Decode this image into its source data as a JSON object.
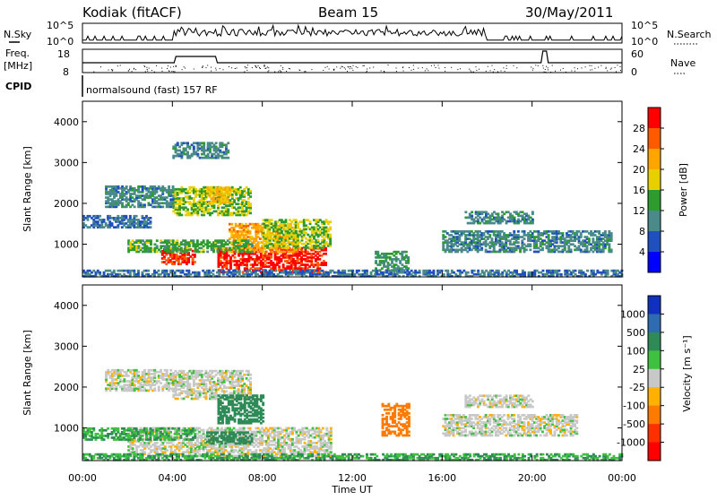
{
  "header": {
    "station": "Kodiak (fitACF)",
    "beam": "Beam 15",
    "date": "30/May/2011"
  },
  "top_panels": {
    "nsky_label": "N.Sky",
    "nsky_ticks": [
      "10^5",
      "10^0"
    ],
    "nsearch_label": "N.Search",
    "nsearch_ticks": [
      "10^5",
      "10^0"
    ],
    "freq_label_1": "Freq.",
    "freq_label_2": "[MHz]",
    "freq_ticks": [
      "18",
      "8"
    ],
    "nave_label": "Nave",
    "nave_ticks": [
      "60",
      "0"
    ],
    "cpid_label": "CPID",
    "cpid_text": "normalsound (fast) 157 RF"
  },
  "chart_data": [
    {
      "type": "heatmap",
      "name": "power-panel",
      "ylabel": "Slant Range [km]",
      "ylim": [
        200,
        4500
      ],
      "yticks": [
        "1000",
        "2000",
        "3000",
        "4000"
      ],
      "xlim": [
        "00:00",
        "24:00"
      ],
      "colorbar": {
        "label": "Power [dB]",
        "ticks": [
          "28",
          "24",
          "20",
          "16",
          "12",
          "8",
          "4"
        ],
        "colors": [
          "#ff0000",
          "#ff5a00",
          "#ffa500",
          "#e8d000",
          "#2e9b2e",
          "#4a8a8a",
          "#2050c0",
          "#0000ff"
        ]
      },
      "regions": [
        {
          "t0": 3.5,
          "t1": 5.0,
          "r0": 500,
          "r1": 900,
          "v": 26
        },
        {
          "t0": 6.0,
          "t1": 10.8,
          "r0": 300,
          "r1": 900,
          "v": 27
        },
        {
          "t0": 6.5,
          "t1": 9.5,
          "r0": 800,
          "r1": 1500,
          "v": 20
        },
        {
          "t0": 2.0,
          "t1": 7.5,
          "r0": 800,
          "r1": 1100,
          "v": 12
        },
        {
          "t0": 4.0,
          "t1": 7.5,
          "r0": 1700,
          "r1": 2400,
          "v": 14
        },
        {
          "t0": 5.5,
          "t1": 6.5,
          "r0": 2000,
          "r1": 2400,
          "v": 18
        },
        {
          "t0": 1.0,
          "t1": 4.0,
          "r0": 1900,
          "r1": 2400,
          "v": 8
        },
        {
          "t0": 0.0,
          "t1": 3.0,
          "r0": 1400,
          "r1": 1700,
          "v": 6
        },
        {
          "t0": 8.0,
          "t1": 11.0,
          "r0": 900,
          "r1": 1600,
          "v": 14
        },
        {
          "t0": 4.0,
          "t1": 6.5,
          "r0": 3100,
          "r1": 3500,
          "v": 8
        },
        {
          "t0": 13.0,
          "t1": 14.5,
          "r0": 300,
          "r1": 800,
          "v": 10
        },
        {
          "t0": 16.0,
          "t1": 23.5,
          "r0": 800,
          "r1": 1300,
          "v": 8
        },
        {
          "t0": 17.0,
          "t1": 20.0,
          "r0": 1500,
          "r1": 1800,
          "v": 8
        },
        {
          "t0": 0.0,
          "t1": 24.0,
          "r0": 200,
          "r1": 350,
          "v": 6
        }
      ]
    },
    {
      "type": "heatmap",
      "name": "velocity-panel",
      "ylabel": "Slant Range [km]",
      "ylim": [
        200,
        4500
      ],
      "yticks": [
        "1000",
        "2000",
        "3000",
        "4000"
      ],
      "xlabel": "Time UT",
      "xticks": [
        "00:00",
        "04:00",
        "08:00",
        "12:00",
        "16:00",
        "20:00",
        "00:00"
      ],
      "colorbar": {
        "label": "Velocity [m s⁻¹]",
        "ticks": [
          "1000",
          "500",
          "100",
          "25",
          "-25",
          "-100",
          "-500",
          "-1000"
        ],
        "colors": [
          "#1030c0",
          "#2e6bb0",
          "#2e8b57",
          "#40c040",
          "#c8c8c8",
          "#ffb000",
          "#ff7a00",
          "#ff3000",
          "#ff0000"
        ]
      },
      "regions": [
        {
          "t0": 2.0,
          "t1": 11.0,
          "r0": 300,
          "r1": 1000,
          "v": 0
        },
        {
          "t0": 0.0,
          "t1": 5.0,
          "r0": 700,
          "r1": 1000,
          "v": 60
        },
        {
          "t0": 5.5,
          "t1": 7.5,
          "r0": 600,
          "r1": 900,
          "v": 200
        },
        {
          "t0": 4.0,
          "t1": 7.5,
          "r0": 1700,
          "r1": 2400,
          "v": 0
        },
        {
          "t0": 1.0,
          "t1": 4.0,
          "r0": 1900,
          "r1": 2400,
          "v": 0
        },
        {
          "t0": 6.0,
          "t1": 8.0,
          "r0": 1100,
          "r1": 1800,
          "v": 150
        },
        {
          "t0": 13.3,
          "t1": 14.5,
          "r0": 800,
          "r1": 1600,
          "v": -150
        },
        {
          "t0": 16.0,
          "t1": 22.0,
          "r0": 800,
          "r1": 1300,
          "v": 0
        },
        {
          "t0": 17.0,
          "t1": 20.0,
          "r0": 1500,
          "r1": 1800,
          "v": 0
        },
        {
          "t0": 0.0,
          "t1": 24.0,
          "r0": 200,
          "r1": 350,
          "v": 60
        }
      ]
    }
  ]
}
